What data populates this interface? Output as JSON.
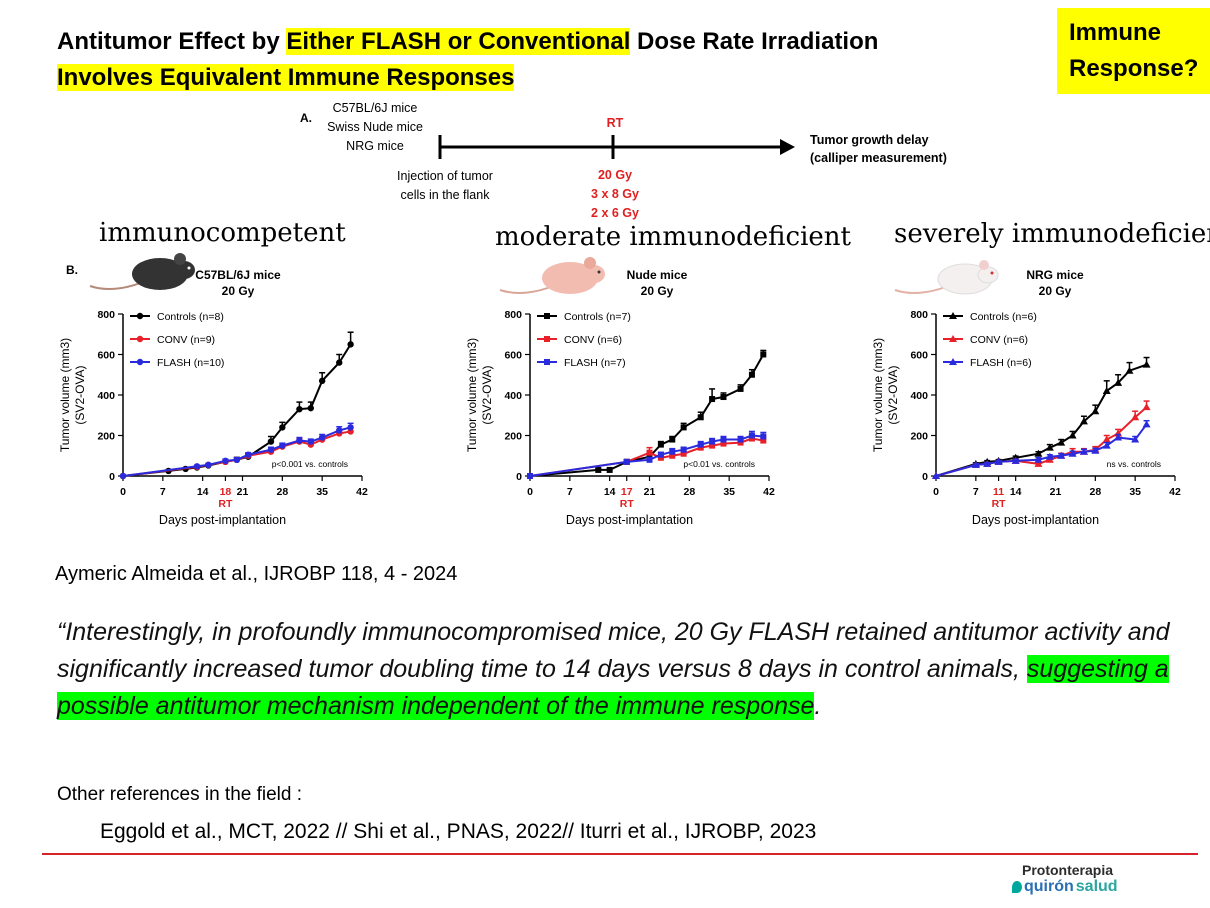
{
  "title": {
    "part1": "Antitumor Effect by ",
    "part2": "Either FLASH or Conventional",
    "part3": " Dose Rate Irradiation",
    "line2": "Involves Equivalent Immune Responses"
  },
  "immune_box": {
    "line1": "Immune",
    "line2": "Response?"
  },
  "panel_a": {
    "label": "A.",
    "mice": [
      "C57BL/6J mice",
      "Swiss Nude mice",
      "NRG mice"
    ],
    "injection": [
      "Injection of tumor",
      "cells in the flank"
    ],
    "rt": "RT",
    "doses": [
      "20 Gy",
      "3 x 8 Gy",
      "2 x 6 Gy"
    ],
    "outcome": [
      "Tumor growth delay",
      "(calliper measurement)"
    ]
  },
  "panel_b": {
    "label": "B."
  },
  "headings": [
    "immunocompetent",
    "moderate immunodeficient",
    "severely immunodeficient"
  ],
  "colors": {
    "controls": "#000000",
    "conv": "#e8202a",
    "flash": "#2b2bde",
    "highlight_yellow": "#ffff00",
    "highlight_green": "#00ff00",
    "rule": "#d6222a"
  },
  "chart_data": [
    {
      "type": "line",
      "title": "C57BL/6J mice",
      "subtitle": "20 Gy",
      "xlabel": "Days post-implantation",
      "ylabel": [
        "Tumor volume (mm3)",
        "(SV2-OVA)"
      ],
      "xlim": [
        0,
        42
      ],
      "ylim": [
        0,
        800
      ],
      "xticks": [
        "0",
        "7",
        "14",
        "18",
        "21",
        "28",
        "35",
        "42"
      ],
      "xtick_values": [
        0,
        7,
        14,
        18,
        21,
        28,
        35,
        42
      ],
      "yticks": [
        "0",
        "200",
        "400",
        "600",
        "800"
      ],
      "ytick_values": [
        0,
        200,
        400,
        600,
        800
      ],
      "rt_day": "18",
      "rt_label": "RT",
      "annotation": "p<0.001 vs. controls",
      "marker": "circle",
      "series": [
        {
          "name": "Controls (n=8)",
          "color": "#000000",
          "x": [
            0,
            8,
            11,
            13,
            15,
            18,
            20,
            22,
            26,
            28,
            31,
            33,
            35,
            38,
            40
          ],
          "y": [
            0,
            25,
            35,
            42,
            52,
            70,
            80,
            95,
            170,
            240,
            330,
            335,
            470,
            560,
            650
          ],
          "err": [
            0,
            5,
            5,
            6,
            8,
            10,
            12,
            14,
            25,
            25,
            35,
            30,
            40,
            40,
            60
          ]
        },
        {
          "name": "CONV (n=9)",
          "color": "#e8202a",
          "x": [
            0,
            13,
            15,
            18,
            20,
            22,
            26,
            28,
            31,
            33,
            35,
            38,
            40
          ],
          "y": [
            0,
            45,
            55,
            70,
            80,
            100,
            120,
            145,
            170,
            155,
            180,
            210,
            220
          ],
          "err": [
            0,
            5,
            6,
            8,
            10,
            10,
            12,
            12,
            15,
            12,
            15,
            18,
            20
          ]
        },
        {
          "name": "FLASH (n=10)",
          "color": "#2b2bde",
          "x": [
            0,
            13,
            15,
            18,
            20,
            22,
            26,
            28,
            31,
            33,
            35,
            38,
            40
          ],
          "y": [
            0,
            48,
            55,
            75,
            80,
            105,
            130,
            150,
            175,
            170,
            190,
            225,
            240
          ],
          "err": [
            0,
            5,
            6,
            8,
            10,
            10,
            12,
            12,
            15,
            12,
            15,
            18,
            20
          ]
        }
      ]
    },
    {
      "type": "line",
      "title": "Nude mice",
      "subtitle": "20 Gy",
      "xlabel": "Days post-implantation",
      "ylabel": [
        "Tumor volume (mm3)",
        "(SV2-OVA)"
      ],
      "xlim": [
        0,
        42
      ],
      "ylim": [
        0,
        800
      ],
      "xticks": [
        "0",
        "7",
        "14",
        "17",
        "21",
        "28",
        "35",
        "42"
      ],
      "xtick_values": [
        0,
        7,
        14,
        17,
        21,
        28,
        35,
        42
      ],
      "yticks": [
        "0",
        "200",
        "400",
        "600",
        "800"
      ],
      "ytick_values": [
        0,
        200,
        400,
        600,
        800
      ],
      "rt_day": "17",
      "rt_label": "RT",
      "annotation": "p<0.01 vs. controls",
      "marker": "square",
      "series": [
        {
          "name": "Controls (n=7)",
          "color": "#000000",
          "x": [
            0,
            12,
            14,
            17,
            21,
            23,
            25,
            27,
            30,
            32,
            34,
            37,
            39,
            41
          ],
          "y": [
            0,
            30,
            30,
            70,
            95,
            155,
            180,
            240,
            290,
            380,
            390,
            430,
            500,
            600
          ],
          "err": [
            0,
            5,
            5,
            8,
            12,
            15,
            15,
            20,
            25,
            50,
            20,
            20,
            25,
            20
          ]
        },
        {
          "name": "CONV (n=6)",
          "color": "#e8202a",
          "x": [
            0,
            17,
            21,
            23,
            25,
            27,
            30,
            32,
            34,
            37,
            39,
            41
          ],
          "y": [
            0,
            70,
            115,
            90,
            100,
            110,
            140,
            150,
            160,
            165,
            185,
            175
          ],
          "err": [
            0,
            8,
            25,
            15,
            12,
            12,
            15,
            15,
            15,
            15,
            20,
            20
          ]
        },
        {
          "name": "FLASH (n=7)",
          "color": "#2b2bde",
          "x": [
            0,
            17,
            21,
            23,
            25,
            27,
            30,
            32,
            34,
            37,
            39,
            41
          ],
          "y": [
            0,
            70,
            80,
            105,
            120,
            130,
            155,
            170,
            180,
            180,
            200,
            195
          ],
          "err": [
            0,
            8,
            12,
            12,
            15,
            12,
            15,
            15,
            15,
            15,
            20,
            20
          ]
        }
      ]
    },
    {
      "type": "line",
      "title": "NRG mice",
      "subtitle": "20 Gy",
      "xlabel": "Days post-implantation",
      "ylabel": [
        "Tumor volume (mm3)",
        "(SV2-OVA)"
      ],
      "xlim": [
        0,
        42
      ],
      "ylim": [
        0,
        800
      ],
      "xticks": [
        "0",
        "7",
        "11",
        "14",
        "21",
        "28",
        "35",
        "42"
      ],
      "xtick_values": [
        0,
        7,
        11,
        14,
        21,
        28,
        35,
        42
      ],
      "yticks": [
        "0",
        "200",
        "400",
        "600",
        "800"
      ],
      "ytick_values": [
        0,
        200,
        400,
        600,
        800
      ],
      "rt_day": "11",
      "rt_label": "RT",
      "annotation": "ns vs. controls",
      "marker": "triangle",
      "series": [
        {
          "name": "Controls (n=6)",
          "color": "#000000",
          "x": [
            0,
            7,
            9,
            11,
            14,
            18,
            20,
            22,
            24,
            26,
            28,
            30,
            32,
            34,
            37
          ],
          "y": [
            0,
            60,
            70,
            75,
            90,
            110,
            140,
            165,
            200,
            270,
            320,
            420,
            460,
            520,
            550
          ],
          "err": [
            0,
            5,
            6,
            6,
            8,
            10,
            15,
            15,
            20,
            25,
            30,
            50,
            40,
            40,
            35
          ]
        },
        {
          "name": "CONV (n=6)",
          "color": "#e8202a",
          "x": [
            0,
            7,
            9,
            11,
            14,
            18,
            20,
            22,
            24,
            26,
            28,
            30,
            32,
            35,
            37
          ],
          "y": [
            0,
            55,
            60,
            70,
            75,
            60,
            80,
            100,
            120,
            120,
            130,
            180,
            210,
            290,
            340
          ],
          "err": [
            0,
            5,
            6,
            6,
            8,
            10,
            12,
            12,
            15,
            15,
            15,
            20,
            20,
            30,
            30
          ]
        },
        {
          "name": "FLASH (n=6)",
          "color": "#2b2bde",
          "x": [
            0,
            7,
            9,
            11,
            14,
            18,
            20,
            22,
            24,
            26,
            28,
            30,
            32,
            35,
            37
          ],
          "y": [
            0,
            55,
            60,
            70,
            75,
            80,
            95,
            100,
            110,
            120,
            125,
            150,
            190,
            180,
            255
          ],
          "err": [
            0,
            5,
            6,
            6,
            8,
            10,
            10,
            10,
            12,
            12,
            12,
            15,
            15,
            15,
            18
          ]
        }
      ]
    }
  ],
  "citation": "Aymeric Almeida et al., IJROBP 118, 4 - 2024",
  "quote": {
    "part1": "“Interestingly, in profoundly immunocompromised mice, 20 Gy FLASH retained antitumor activity and significantly increased tumor doubling time to 14 days versus 8 days in control animals, ",
    "highlight": "suggesting a possible antitumor mechanism independent of the immune response",
    "end": "."
  },
  "refs_title": "Other references in the field :",
  "refs": "Eggold et al., MCT, 2022 //  Shi et al., PNAS, 2022//  Iturri et al., IJROBP, 2023",
  "logo": {
    "top": "Protonterapia",
    "bottom_a": "quirón",
    "bottom_b": "salud"
  }
}
